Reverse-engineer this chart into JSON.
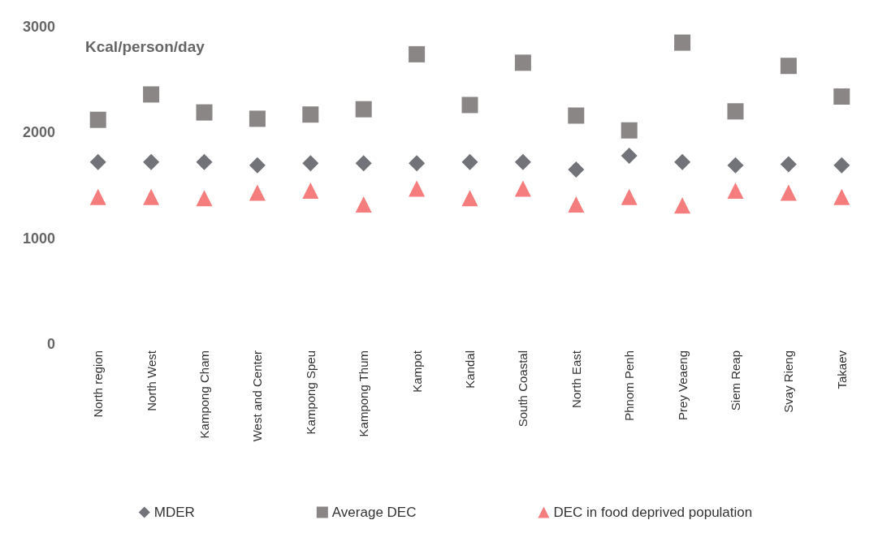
{
  "chart_data": {
    "type": "scatter",
    "ylabel": "Kcal/person/day",
    "categories": [
      "North region",
      "North West",
      "Kampong Cham",
      "West and Center",
      "Kampong Speu",
      "Kampong Thum",
      "Kampot",
      "Kandal",
      "South Coastal",
      "North East",
      "Phnom Penh",
      "Prey Veaeng",
      "Siem Reap",
      "Svay Rieng",
      "Takaev"
    ],
    "series": [
      {
        "name": "MDER",
        "color": "#4d5058",
        "marker": "diamond",
        "values": [
          1720,
          1720,
          1720,
          1690,
          1710,
          1710,
          1710,
          1720,
          1720,
          1650,
          1780,
          1720,
          1690,
          1700,
          1690
        ]
      },
      {
        "name": "Average DEC",
        "color": "#6b6867",
        "marker": "square",
        "values": [
          2120,
          2360,
          2190,
          2130,
          2170,
          2220,
          2740,
          2260,
          2660,
          2160,
          2020,
          2850,
          2200,
          2630,
          2340
        ]
      },
      {
        "name": "DEC in food deprived population",
        "color": "#f25c5c",
        "marker": "triangle",
        "values": [
          1390,
          1390,
          1380,
          1430,
          1450,
          1320,
          1470,
          1380,
          1470,
          1320,
          1390,
          1310,
          1450,
          1430,
          1390
        ]
      }
    ],
    "ylim": [
      0,
      3000
    ],
    "yticks": [
      0,
      1000,
      2000,
      3000
    ],
    "grid": false,
    "legend": "bottom"
  }
}
